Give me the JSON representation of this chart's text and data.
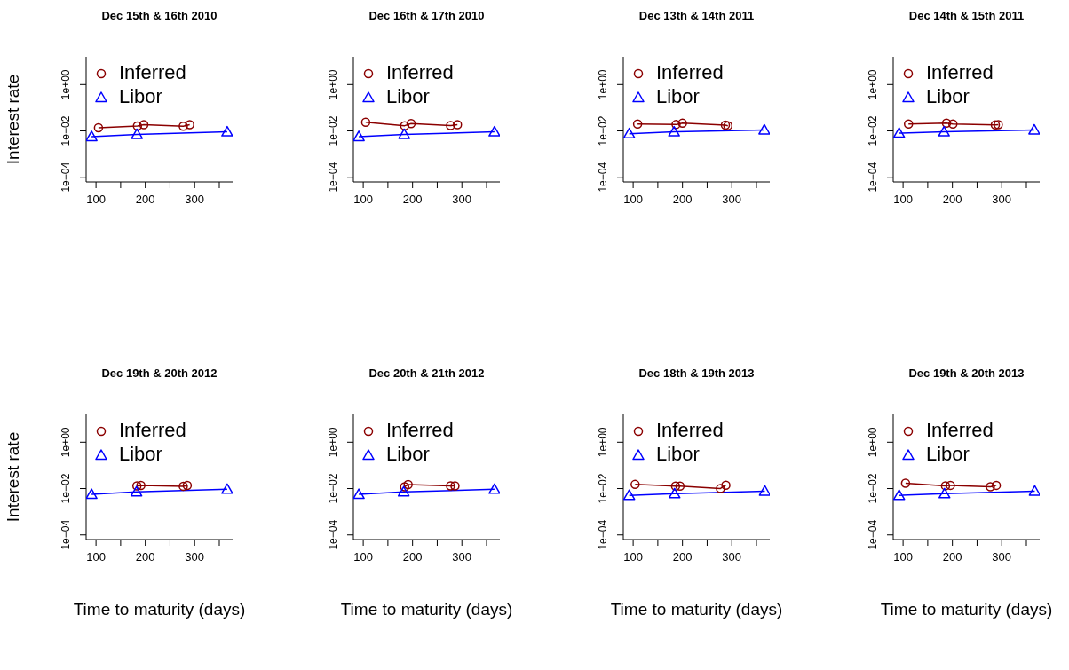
{
  "chart_data": [
    {
      "type": "line",
      "title": "Dec 15th & 16th 2010",
      "ylabel": "Interest rate",
      "log": "y",
      "legend": "top left",
      "line_style": "solid",
      "xlim": [
        80,
        377
      ],
      "xticks": [
        100,
        {
          "value": 150,
          "label": null
        },
        200,
        {
          "value": 250,
          "label": null
        },
        300,
        {
          "value": 350,
          "label": null
        }
      ],
      "ylim": [
        6.3e-05,
        15.8
      ],
      "yticks": [
        {
          "value": 0.0001,
          "label": "1e−04"
        },
        {
          "value": 0.01,
          "label": "1e−02"
        },
        {
          "value": 1,
          "label": "1e+00"
        }
      ],
      "series": [
        {
          "name": "Inferred",
          "color": "#8b0000",
          "marker": "circle",
          "x": [
            105,
            184,
            197,
            277,
            290
          ],
          "values": [
            0.0136,
            0.0164,
            0.0185,
            0.016,
            0.0185
          ]
        },
        {
          "name": "Libor",
          "color": "#0000ff",
          "marker": "triangle",
          "x": [
            91,
            183,
            366
          ],
          "values": [
            0.0057,
            0.0071,
            0.0091
          ]
        }
      ]
    },
    {
      "type": "line",
      "title": "Dec 16th & 17th 2010",
      "log": "y",
      "legend": "top left",
      "line_style": "solid",
      "xlim": [
        80,
        377
      ],
      "xticks": [
        100,
        {
          "value": 150,
          "label": null
        },
        200,
        {
          "value": 250,
          "label": null
        },
        300,
        {
          "value": 350,
          "label": null
        }
      ],
      "ylim": [
        6.3e-05,
        15.8
      ],
      "yticks": [
        {
          "value": 0.0001,
          "label": "1e−04"
        },
        {
          "value": 0.01,
          "label": "1e−02"
        },
        {
          "value": 1,
          "label": "1e+00"
        }
      ],
      "series": [
        {
          "name": "Inferred",
          "color": "#8b0000",
          "marker": "circle",
          "x": [
            105,
            184,
            197,
            277,
            291
          ],
          "values": [
            0.0237,
            0.0168,
            0.0209,
            0.017,
            0.0185
          ]
        },
        {
          "name": "Libor",
          "color": "#0000ff",
          "marker": "triangle",
          "x": [
            91,
            183,
            366
          ],
          "values": [
            0.0057,
            0.0071,
            0.0091
          ]
        }
      ]
    },
    {
      "type": "line",
      "title": "Dec 13th & 14th 2011",
      "log": "y",
      "legend": "top left",
      "line_style": "solid",
      "xlim": [
        80,
        377
      ],
      "xticks": [
        100,
        {
          "value": 150,
          "label": null
        },
        200,
        {
          "value": 250,
          "label": null
        },
        300,
        {
          "value": 350,
          "label": null
        }
      ],
      "ylim": [
        6.3e-05,
        15.8
      ],
      "yticks": [
        {
          "value": 0.0001,
          "label": "1e−04"
        },
        {
          "value": 0.01,
          "label": "1e−02"
        },
        {
          "value": 1,
          "label": "1e+00"
        }
      ],
      "series": [
        {
          "name": "Inferred",
          "color": "#8b0000",
          "marker": "circle",
          "x": [
            109,
            187,
            200,
            287,
            292
          ],
          "values": [
            0.0198,
            0.0188,
            0.0215,
            0.0177,
            0.0168
          ]
        },
        {
          "name": "Libor",
          "color": "#0000ff",
          "marker": "triangle",
          "x": [
            92,
            183,
            366
          ],
          "values": [
            0.0076,
            0.0091,
            0.011
          ]
        }
      ]
    },
    {
      "type": "line",
      "title": "Dec 14th & 15th 2011",
      "log": "y",
      "legend": "top left",
      "line_style": "solid",
      "xlim": [
        80,
        377
      ],
      "xticks": [
        100,
        {
          "value": 150,
          "label": null
        },
        200,
        {
          "value": 250,
          "label": null
        },
        300,
        {
          "value": 350,
          "label": null
        }
      ],
      "ylim": [
        6.3e-05,
        15.8
      ],
      "yticks": [
        {
          "value": 0.0001,
          "label": "1e−04"
        },
        {
          "value": 0.01,
          "label": "1e−02"
        },
        {
          "value": 1,
          "label": "1e+00"
        }
      ],
      "series": [
        {
          "name": "Inferred",
          "color": "#8b0000",
          "marker": "circle",
          "x": [
            111,
            188,
            201,
            287,
            293
          ],
          "values": [
            0.02,
            0.0218,
            0.0198,
            0.0183,
            0.0185
          ]
        },
        {
          "name": "Libor",
          "color": "#0000ff",
          "marker": "triangle",
          "x": [
            92,
            183,
            366
          ],
          "values": [
            0.008,
            0.0091,
            0.011
          ]
        }
      ]
    },
    {
      "type": "line",
      "title": "Dec 19th & 20th 2012",
      "xlabel": "Time to maturity (days)",
      "ylabel": "Interest rate",
      "log": "y",
      "legend": "top left",
      "line_style": "solid",
      "xlim": [
        80,
        377
      ],
      "xticks": [
        100,
        {
          "value": 150,
          "label": null
        },
        200,
        {
          "value": 250,
          "label": null
        },
        300,
        {
          "value": 350,
          "label": null
        }
      ],
      "ylim": [
        6.3e-05,
        15.8
      ],
      "yticks": [
        {
          "value": 0.0001,
          "label": "1e−04"
        },
        {
          "value": 0.01,
          "label": "1e−02"
        },
        {
          "value": 1,
          "label": "1e+00"
        }
      ],
      "series": [
        {
          "name": "Inferred",
          "color": "#8b0000",
          "marker": "circle",
          "x": [
            183,
            191,
            277,
            285
          ],
          "values": [
            0.0131,
            0.0136,
            0.0126,
            0.0136
          ]
        },
        {
          "name": "Libor",
          "color": "#0000ff",
          "marker": "triangle",
          "x": [
            91,
            182,
            366
          ],
          "values": [
            0.0056,
            0.0072,
            0.0093
          ]
        }
      ]
    },
    {
      "type": "line",
      "title": "Dec 20th & 21th 2012",
      "xlabel": "Time to maturity (days)",
      "log": "y",
      "legend": "top left",
      "line_style": "solid",
      "xlim": [
        80,
        377
      ],
      "xticks": [
        100,
        {
          "value": 150,
          "label": null
        },
        200,
        {
          "value": 250,
          "label": null
        },
        300,
        {
          "value": 350,
          "label": null
        }
      ],
      "ylim": [
        6.3e-05,
        15.8
      ],
      "yticks": [
        {
          "value": 0.0001,
          "label": "1e−04"
        },
        {
          "value": 0.01,
          "label": "1e−02"
        },
        {
          "value": 1,
          "label": "1e+00"
        }
      ],
      "series": [
        {
          "name": "Inferred",
          "color": "#8b0000",
          "marker": "circle",
          "x": [
            184,
            191,
            277,
            286
          ],
          "values": [
            0.012,
            0.0149,
            0.013,
            0.0131
          ]
        },
        {
          "name": "Libor",
          "color": "#0000ff",
          "marker": "triangle",
          "x": [
            91,
            182,
            366
          ],
          "values": [
            0.0056,
            0.0072,
            0.0093
          ]
        }
      ]
    },
    {
      "type": "line",
      "title": "Dec 18th & 19th 2013",
      "xlabel": "Time to maturity (days)",
      "log": "y",
      "legend": "top left",
      "line_style": "solid",
      "xlim": [
        80,
        377
      ],
      "xticks": [
        100,
        {
          "value": 150,
          "label": null
        },
        200,
        {
          "value": 250,
          "label": null
        },
        300,
        {
          "value": 350,
          "label": null
        }
      ],
      "ylim": [
        6.3e-05,
        15.8
      ],
      "yticks": [
        {
          "value": 0.0001,
          "label": "1e−04"
        },
        {
          "value": 0.01,
          "label": "1e−02"
        },
        {
          "value": 1,
          "label": "1e+00"
        }
      ],
      "series": [
        {
          "name": "Inferred",
          "color": "#8b0000",
          "marker": "circle",
          "x": [
            104,
            186,
            195,
            277,
            288
          ],
          "values": [
            0.0151,
            0.0127,
            0.0127,
            0.0101,
            0.014
          ]
        },
        {
          "name": "Libor",
          "color": "#0000ff",
          "marker": "triangle",
          "x": [
            92,
            184,
            367
          ],
          "values": [
            0.0051,
            0.006,
            0.0077
          ]
        }
      ]
    },
    {
      "type": "line",
      "title": "Dec 19th & 20th 2013",
      "xlabel": "Time to maturity (days)",
      "log": "y",
      "legend": "top left",
      "line_style": "solid",
      "xlim": [
        80,
        377
      ],
      "xticks": [
        100,
        {
          "value": 150,
          "label": null
        },
        200,
        {
          "value": 250,
          "label": null
        },
        300,
        {
          "value": 350,
          "label": null
        }
      ],
      "ylim": [
        6.3e-05,
        15.8
      ],
      "yticks": [
        {
          "value": 0.0001,
          "label": "1e−04"
        },
        {
          "value": 0.01,
          "label": "1e−02"
        },
        {
          "value": 1,
          "label": "1e+00"
        }
      ],
      "series": [
        {
          "name": "Inferred",
          "color": "#8b0000",
          "marker": "circle",
          "x": [
            105,
            186,
            196,
            277,
            289
          ],
          "values": [
            0.0169,
            0.0132,
            0.0138,
            0.012,
            0.0138
          ]
        },
        {
          "name": "Libor",
          "color": "#0000ff",
          "marker": "triangle",
          "x": [
            92,
            184,
            367
          ],
          "values": [
            0.0051,
            0.006,
            0.0077
          ]
        }
      ]
    }
  ]
}
